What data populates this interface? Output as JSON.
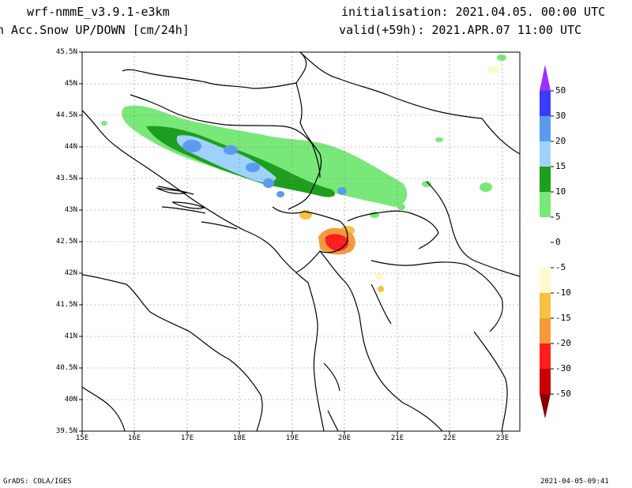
{
  "header": {
    "model": "wrf-nmmE_v3.9.1-e3km",
    "field": "n Acc.Snow UP/DOWN [cm/24h]",
    "init": "initialisation: 2021.04.05.  00:00 UTC",
    "valid": "valid(+59h): 2021.APR.07 11:00 UTC"
  },
  "axes": {
    "lat_labels": [
      "45.5N",
      "45N",
      "44.5N",
      "44N",
      "43.5N",
      "43N",
      "42.5N",
      "42N",
      "41.5N",
      "41N",
      "40.5N",
      "40N",
      "39.5N"
    ],
    "lon_labels": [
      "15E",
      "16E",
      "17E",
      "18E",
      "19E",
      "20E",
      "21E",
      "22E",
      "23E"
    ]
  },
  "colorbar": {
    "labels": [
      "50",
      "30",
      "20",
      "15",
      "10",
      "5",
      "0",
      "-5",
      "-10",
      "-15",
      "-20",
      "-30",
      "-50"
    ],
    "colors": [
      "#3c3cff",
      "#5a9bf0",
      "#a0d2ff",
      "#1e9e1e",
      "#78e878",
      "#ffffff",
      "#fffacd",
      "#f5c242",
      "#f59a3c",
      "#ff1e1e",
      "#c80000",
      "#a00000"
    ],
    "top_color": "#9b30ff",
    "bottom_color": "#8b0000"
  },
  "footer": {
    "left": "GrADS: COLA/IGES",
    "right": "2021-04-05-09:41"
  }
}
